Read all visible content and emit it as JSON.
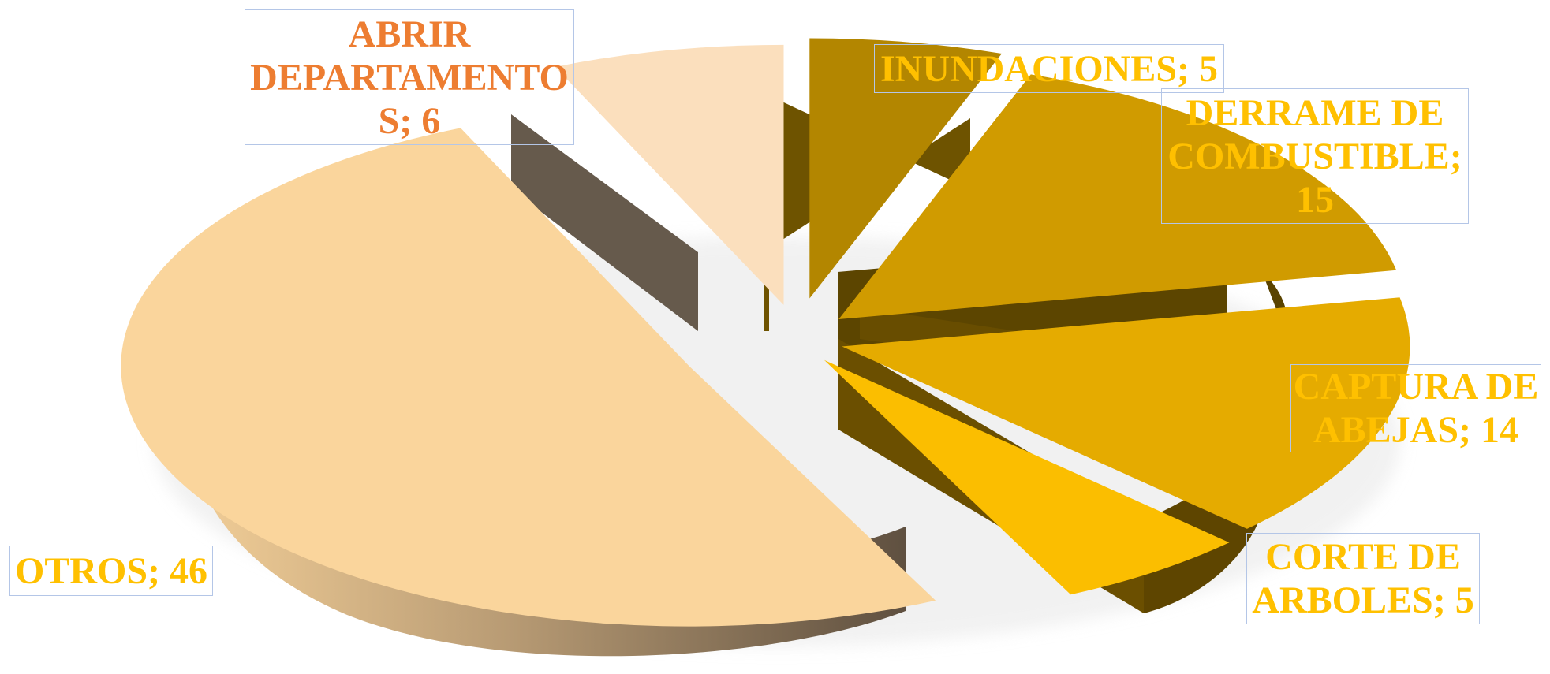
{
  "chart_data": {
    "type": "pie",
    "title": "",
    "slices": [
      {
        "label": "INUNDACIONES",
        "value": 5,
        "label_text": "INUNDACIONES; 5",
        "color": "#b38600",
        "side_color": "#6e5300",
        "label_color": "#ffc000"
      },
      {
        "label": "DERRAME DE COMBUSTIBLE",
        "value": 15,
        "label_text": "DERRAME DE COMBUSTIBLE; 15",
        "color": "#d09b00",
        "side_color": "#5c4500",
        "label_color": "#ffc000"
      },
      {
        "label": "CAPTURA DE ABEJAS",
        "value": 14,
        "label_text": "CAPTURA DE ABEJAS; 14",
        "color": "#e5ab00",
        "side_color": "#684d00",
        "label_color": "#ffc000"
      },
      {
        "label": "CORTE DE ARBOLES",
        "value": 5,
        "label_text": "CORTE DE ARBOLES; 5",
        "color": "#fbbe00",
        "side_color": "#6b4f00",
        "label_color": "#ffc000"
      },
      {
        "label": "OTROS",
        "value": 46,
        "label_text": "OTROS; 46",
        "color": "#fad59c",
        "side_color": "#a58e70",
        "label_color": "#ffc000"
      },
      {
        "label": "ABRIR DEPARTAMENTOS",
        "value": 6,
        "label_text": "ABRIR DEPARTAMENTO S; 6",
        "color": "#fbdfbd",
        "side_color": "#665a4c",
        "label_color": "#ed7d31"
      }
    ],
    "legend": "none",
    "style": "3d-exploded-pie"
  }
}
